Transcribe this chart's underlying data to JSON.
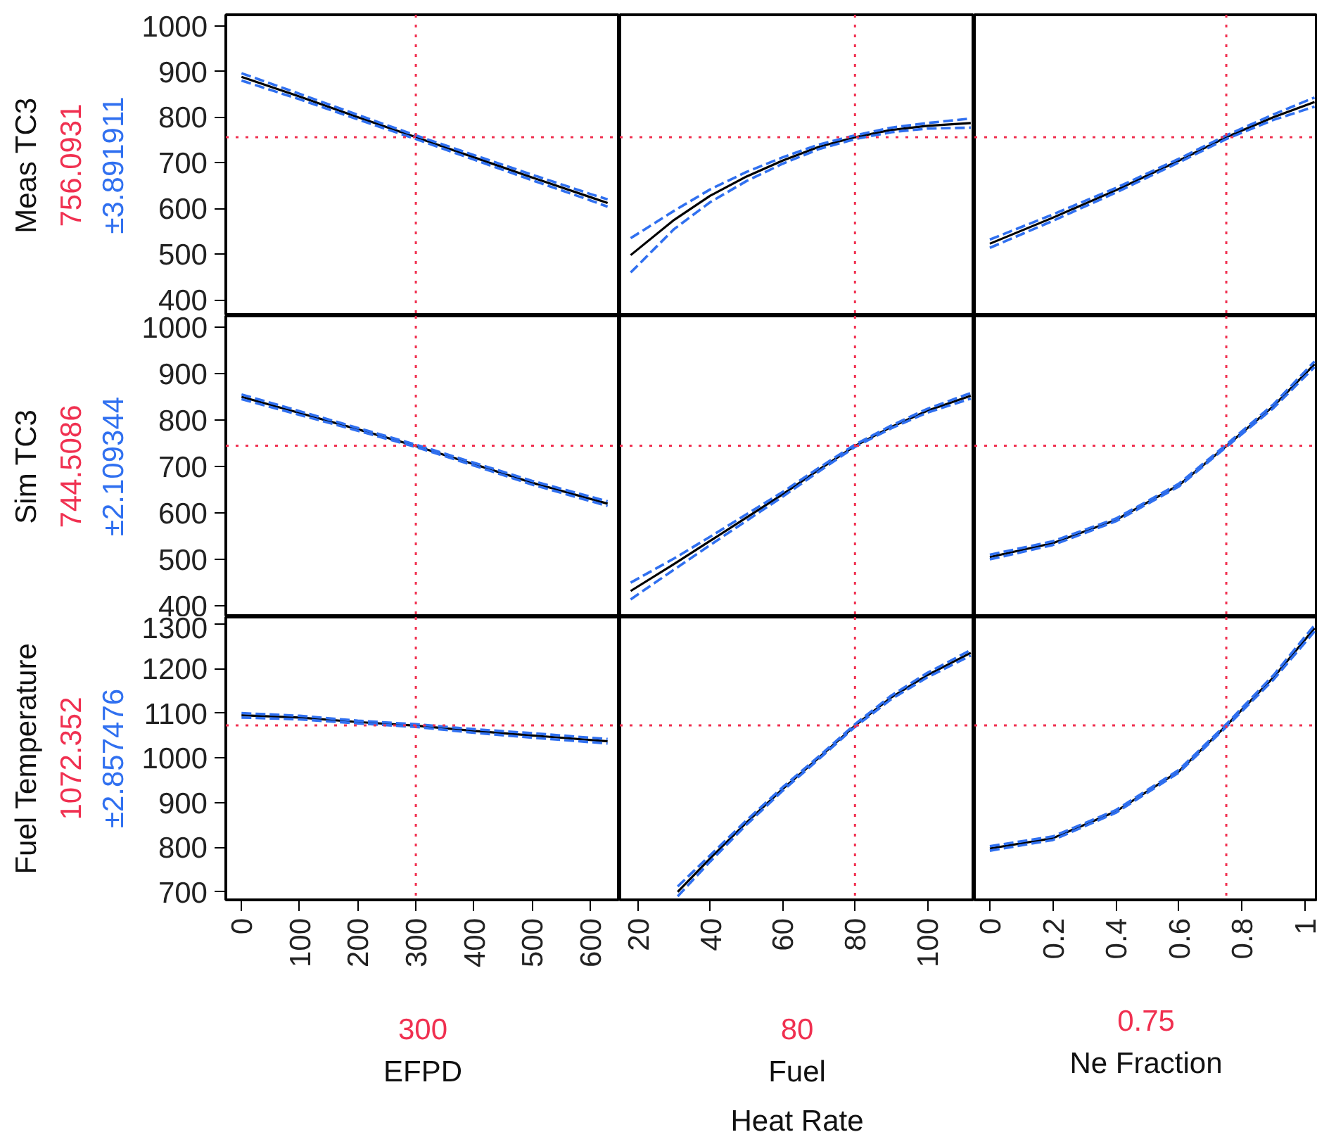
{
  "chart_data": [
    {
      "type": "line",
      "ylabel": "Meas TC3",
      "annotations": [
        "±3.891911"
      ],
      "tick_labels": "y",
      "xlim": [
        -27,
        651
      ],
      "ylim": [
        365,
        1024
      ],
      "yticks": [
        400,
        500,
        600,
        700,
        800,
        900,
        1000
      ],
      "x": [
        0,
        100,
        200,
        300,
        400,
        500,
        600,
        630
      ],
      "series": [
        {
          "color": "#000000",
          "line_style": "solid",
          "values": [
            888,
            845,
            800,
            756,
            712,
            668,
            625,
            612
          ]
        },
        {
          "color": "#3070f0",
          "line_style": "dashed",
          "values": [
            896,
            851,
            805,
            760,
            717,
            674,
            632,
            620
          ]
        },
        {
          "color": "#3070f0",
          "line_style": "dashed",
          "values": [
            880,
            839,
            795,
            752,
            707,
            662,
            618,
            604
          ]
        }
      ],
      "ref_lines": [
        {
          "axis": "x",
          "value": 300,
          "label": null,
          "color": "#f03050",
          "line_style": "dotted"
        },
        {
          "axis": "y",
          "value": 756.0931,
          "label": "756.0931",
          "color": "#f03050",
          "line_style": "dotted"
        }
      ]
    },
    {
      "type": "line",
      "tick_labels": false,
      "xlim": [
        15,
        113
      ],
      "ylim": [
        365,
        1024
      ],
      "x": [
        18,
        30,
        40,
        50,
        60,
        70,
        80,
        90,
        100,
        112
      ],
      "series": [
        {
          "color": "#000000",
          "line_style": "solid",
          "values": [
            498,
            575,
            628,
            670,
            705,
            735,
            756,
            772,
            781,
            787
          ]
        },
        {
          "color": "#3070f0",
          "line_style": "dashed",
          "values": [
            535,
            595,
            642,
            680,
            712,
            740,
            760,
            777,
            787,
            797
          ]
        },
        {
          "color": "#3070f0",
          "line_style": "dashed",
          "values": [
            460,
            555,
            614,
            660,
            698,
            730,
            752,
            767,
            775,
            777
          ]
        }
      ],
      "ref_lines": [
        {
          "axis": "x",
          "value": 80,
          "label": null,
          "color": "#f03050",
          "line_style": "dotted"
        },
        {
          "axis": "y",
          "value": 756.0931,
          "label": null,
          "color": "#f03050",
          "line_style": "dotted"
        }
      ]
    },
    {
      "type": "line",
      "tick_labels": false,
      "xlim": [
        -0.049,
        1.04
      ],
      "ylim": [
        365,
        1024
      ],
      "x": [
        0,
        0.2,
        0.4,
        0.6,
        0.75,
        0.9,
        1.03
      ],
      "series": [
        {
          "color": "#000000",
          "line_style": "solid",
          "values": [
            523,
            580,
            640,
            705,
            756,
            800,
            833
          ]
        },
        {
          "color": "#3070f0",
          "line_style": "dashed",
          "values": [
            532,
            587,
            645,
            709,
            760,
            806,
            843
          ]
        },
        {
          "color": "#3070f0",
          "line_style": "dashed",
          "values": [
            514,
            573,
            635,
            701,
            752,
            794,
            823
          ]
        }
      ],
      "ref_lines": [
        {
          "axis": "x",
          "value": 0.75,
          "label": null,
          "color": "#f03050",
          "line_style": "dotted"
        },
        {
          "axis": "y",
          "value": 756.0931,
          "label": null,
          "color": "#f03050",
          "line_style": "dotted"
        }
      ]
    },
    {
      "type": "line",
      "ylabel": "Sim TC3",
      "annotations": [
        "±2.109344"
      ],
      "tick_labels": "y",
      "xlim": [
        -27,
        651
      ],
      "ylim": [
        376,
        1024
      ],
      "yticks": [
        400,
        500,
        600,
        700,
        800,
        900,
        1000
      ],
      "x": [
        0,
        100,
        200,
        300,
        400,
        500,
        630
      ],
      "series": [
        {
          "color": "#000000",
          "line_style": "solid",
          "values": [
            850,
            815,
            780,
            744,
            705,
            665,
            620
          ]
        },
        {
          "color": "#3070f0",
          "line_style": "dashed",
          "values": [
            855,
            819,
            783,
            747,
            708,
            669,
            625
          ]
        },
        {
          "color": "#3070f0",
          "line_style": "dashed",
          "values": [
            845,
            811,
            777,
            742,
            702,
            661,
            615
          ]
        }
      ],
      "ref_lines": [
        {
          "axis": "x",
          "value": 300,
          "label": null,
          "color": "#f03050",
          "line_style": "dotted"
        },
        {
          "axis": "y",
          "value": 744.5086,
          "label": "744.5086",
          "color": "#f03050",
          "line_style": "dotted"
        }
      ]
    },
    {
      "type": "line",
      "tick_labels": false,
      "xlim": [
        15,
        113
      ],
      "ylim": [
        376,
        1024
      ],
      "x": [
        18,
        30,
        40,
        50,
        60,
        70,
        80,
        90,
        100,
        112
      ],
      "series": [
        {
          "color": "#000000",
          "line_style": "solid",
          "values": [
            432,
            490,
            540,
            590,
            640,
            693,
            744,
            785,
            820,
            852
          ]
        },
        {
          "color": "#3070f0",
          "line_style": "dashed",
          "values": [
            450,
            502,
            549,
            597,
            645,
            697,
            747,
            788,
            824,
            858
          ]
        },
        {
          "color": "#3070f0",
          "line_style": "dashed",
          "values": [
            414,
            478,
            531,
            583,
            635,
            689,
            742,
            782,
            816,
            846
          ]
        }
      ],
      "ref_lines": [
        {
          "axis": "x",
          "value": 80,
          "label": null,
          "color": "#f03050",
          "line_style": "dotted"
        },
        {
          "axis": "y",
          "value": 744.5086,
          "label": null,
          "color": "#f03050",
          "line_style": "dotted"
        }
      ]
    },
    {
      "type": "line",
      "tick_labels": false,
      "xlim": [
        -0.049,
        1.04
      ],
      "ylim": [
        376,
        1024
      ],
      "x": [
        0,
        0.2,
        0.4,
        0.6,
        0.75,
        0.9,
        1.03
      ],
      "series": [
        {
          "color": "#000000",
          "line_style": "solid",
          "values": [
            505,
            535,
            585,
            660,
            744,
            830,
            920
          ]
        },
        {
          "color": "#3070f0",
          "line_style": "dashed",
          "values": [
            510,
            539,
            588,
            663,
            747,
            834,
            926
          ]
        },
        {
          "color": "#3070f0",
          "line_style": "dashed",
          "values": [
            500,
            531,
            582,
            657,
            742,
            826,
            914
          ]
        }
      ],
      "ref_lines": [
        {
          "axis": "x",
          "value": 0.75,
          "label": null,
          "color": "#f03050",
          "line_style": "dotted"
        },
        {
          "axis": "y",
          "value": 744.5086,
          "label": null,
          "color": "#f03050",
          "line_style": "dotted"
        }
      ]
    },
    {
      "type": "line",
      "ylabel": "Fuel Temperature",
      "xlabel": "EFPD",
      "annotations": [
        "±2.857476"
      ],
      "xlim": [
        -27,
        651
      ],
      "ylim": [
        682,
        1315
      ],
      "xticks": [
        0,
        100,
        200,
        300,
        400,
        500,
        600
      ],
      "yticks": [
        700,
        800,
        900,
        1000,
        1100,
        1200,
        1300
      ],
      "x": [
        0,
        100,
        200,
        300,
        400,
        500,
        630
      ],
      "series": [
        {
          "color": "#000000",
          "line_style": "solid",
          "values": [
            1095,
            1090,
            1080,
            1072,
            1060,
            1050,
            1037
          ]
        },
        {
          "color": "#3070f0",
          "line_style": "dashed",
          "values": [
            1100,
            1094,
            1083,
            1075,
            1064,
            1055,
            1042
          ]
        },
        {
          "color": "#3070f0",
          "line_style": "dashed",
          "values": [
            1090,
            1086,
            1077,
            1069,
            1056,
            1045,
            1032
          ]
        }
      ],
      "ref_lines": [
        {
          "axis": "x",
          "value": 300,
          "label": "300",
          "color": "#f03050",
          "line_style": "dotted"
        },
        {
          "axis": "y",
          "value": 1072.352,
          "label": "1072.352",
          "color": "#f03050",
          "line_style": "dotted"
        }
      ]
    },
    {
      "type": "line",
      "xlabel": "Fuel\nHeat Rate",
      "tick_labels": "x",
      "xlim": [
        15,
        113
      ],
      "ylim": [
        682,
        1315
      ],
      "xticks": [
        20,
        40,
        60,
        80,
        100
      ],
      "x": [
        31,
        40,
        50,
        60,
        70,
        80,
        90,
        100,
        112
      ],
      "series": [
        {
          "color": "#000000",
          "line_style": "solid",
          "values": [
            700,
            775,
            855,
            930,
            1000,
            1072,
            1135,
            1185,
            1235
          ]
        },
        {
          "color": "#3070f0",
          "line_style": "dashed",
          "values": [
            712,
            782,
            860,
            934,
            1003,
            1075,
            1139,
            1190,
            1241
          ]
        },
        {
          "color": "#3070f0",
          "line_style": "dashed",
          "values": [
            690,
            768,
            850,
            926,
            997,
            1069,
            1131,
            1180,
            1229
          ]
        }
      ],
      "ref_lines": [
        {
          "axis": "x",
          "value": 80,
          "label": "80",
          "color": "#f03050",
          "line_style": "dotted"
        },
        {
          "axis": "y",
          "value": 1072.352,
          "label": null,
          "color": "#f03050",
          "line_style": "dotted"
        }
      ]
    },
    {
      "type": "line",
      "xlabel": "Ne Fraction",
      "tick_labels": "x",
      "xlim": [
        -0.049,
        1.04
      ],
      "ylim": [
        682,
        1315
      ],
      "xticks": [
        0,
        0.2,
        0.4,
        0.6,
        0.8,
        1
      ],
      "x": [
        0,
        0.2,
        0.4,
        0.6,
        0.75,
        0.9,
        1.03
      ],
      "series": [
        {
          "color": "#000000",
          "line_style": "solid",
          "values": [
            797,
            820,
            880,
            970,
            1072,
            1180,
            1290
          ]
        },
        {
          "color": "#3070f0",
          "line_style": "dashed",
          "values": [
            802,
            824,
            883,
            973,
            1075,
            1185,
            1297
          ]
        },
        {
          "color": "#3070f0",
          "line_style": "dashed",
          "values": [
            792,
            816,
            877,
            967,
            1069,
            1175,
            1283
          ]
        }
      ],
      "ref_lines": [
        {
          "axis": "x",
          "value": 0.75,
          "label": "0.75",
          "color": "#f03050",
          "line_style": "dotted"
        },
        {
          "axis": "y",
          "value": 1072.352,
          "label": null,
          "color": "#f03050",
          "line_style": "dotted"
        }
      ]
    }
  ]
}
